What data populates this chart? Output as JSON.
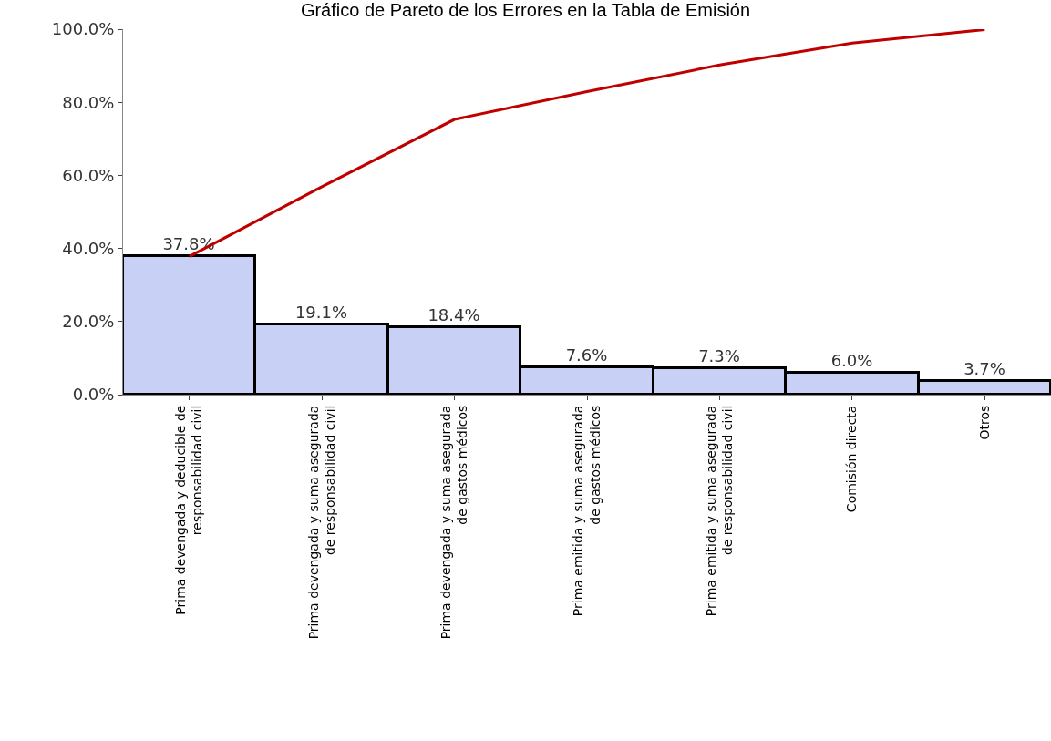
{
  "chart_data": {
    "type": "bar",
    "title": "Gráfico de Pareto de los Errores en la Tabla de Emisión",
    "categories": [
      "Prima devengada y deducible de responsabilidad civil",
      "Prima devengada y suma asegurada de responsabilidad civil",
      "Prima devengada y suma asegurada de gastos médicos",
      "Prima emitida y suma asegurada de gastos médicos",
      "Prima emitida y suma asegurada de responsabilidad civil",
      "Comisión directa",
      "Otros"
    ],
    "series": [
      {
        "color": "#c9d0f5",
        "values": [
          37.8,
          19.1,
          18.4,
          7.6,
          7.3,
          6.0,
          3.7
        ],
        "value_labels": [
          "37.8%",
          "19.1%",
          "18.4%",
          "7.6%",
          "7.3%",
          "6.0%",
          "3.7%"
        ]
      },
      {
        "type": "line",
        "color": "#c00000",
        "values": [
          37.8,
          56.9,
          75.3,
          82.9,
          90.2,
          96.2,
          99.9
        ]
      }
    ],
    "ylim": [
      0,
      100
    ],
    "yticks": [
      {
        "value": 0,
        "label": "0.0%"
      },
      {
        "value": 20,
        "label": "20.0%"
      },
      {
        "value": 40,
        "label": "40.0%"
      },
      {
        "value": 60,
        "label": "60.0%"
      },
      {
        "value": 80,
        "label": "80.0%"
      },
      {
        "value": 100,
        "label": "100.0%"
      }
    ],
    "marker": "none"
  }
}
